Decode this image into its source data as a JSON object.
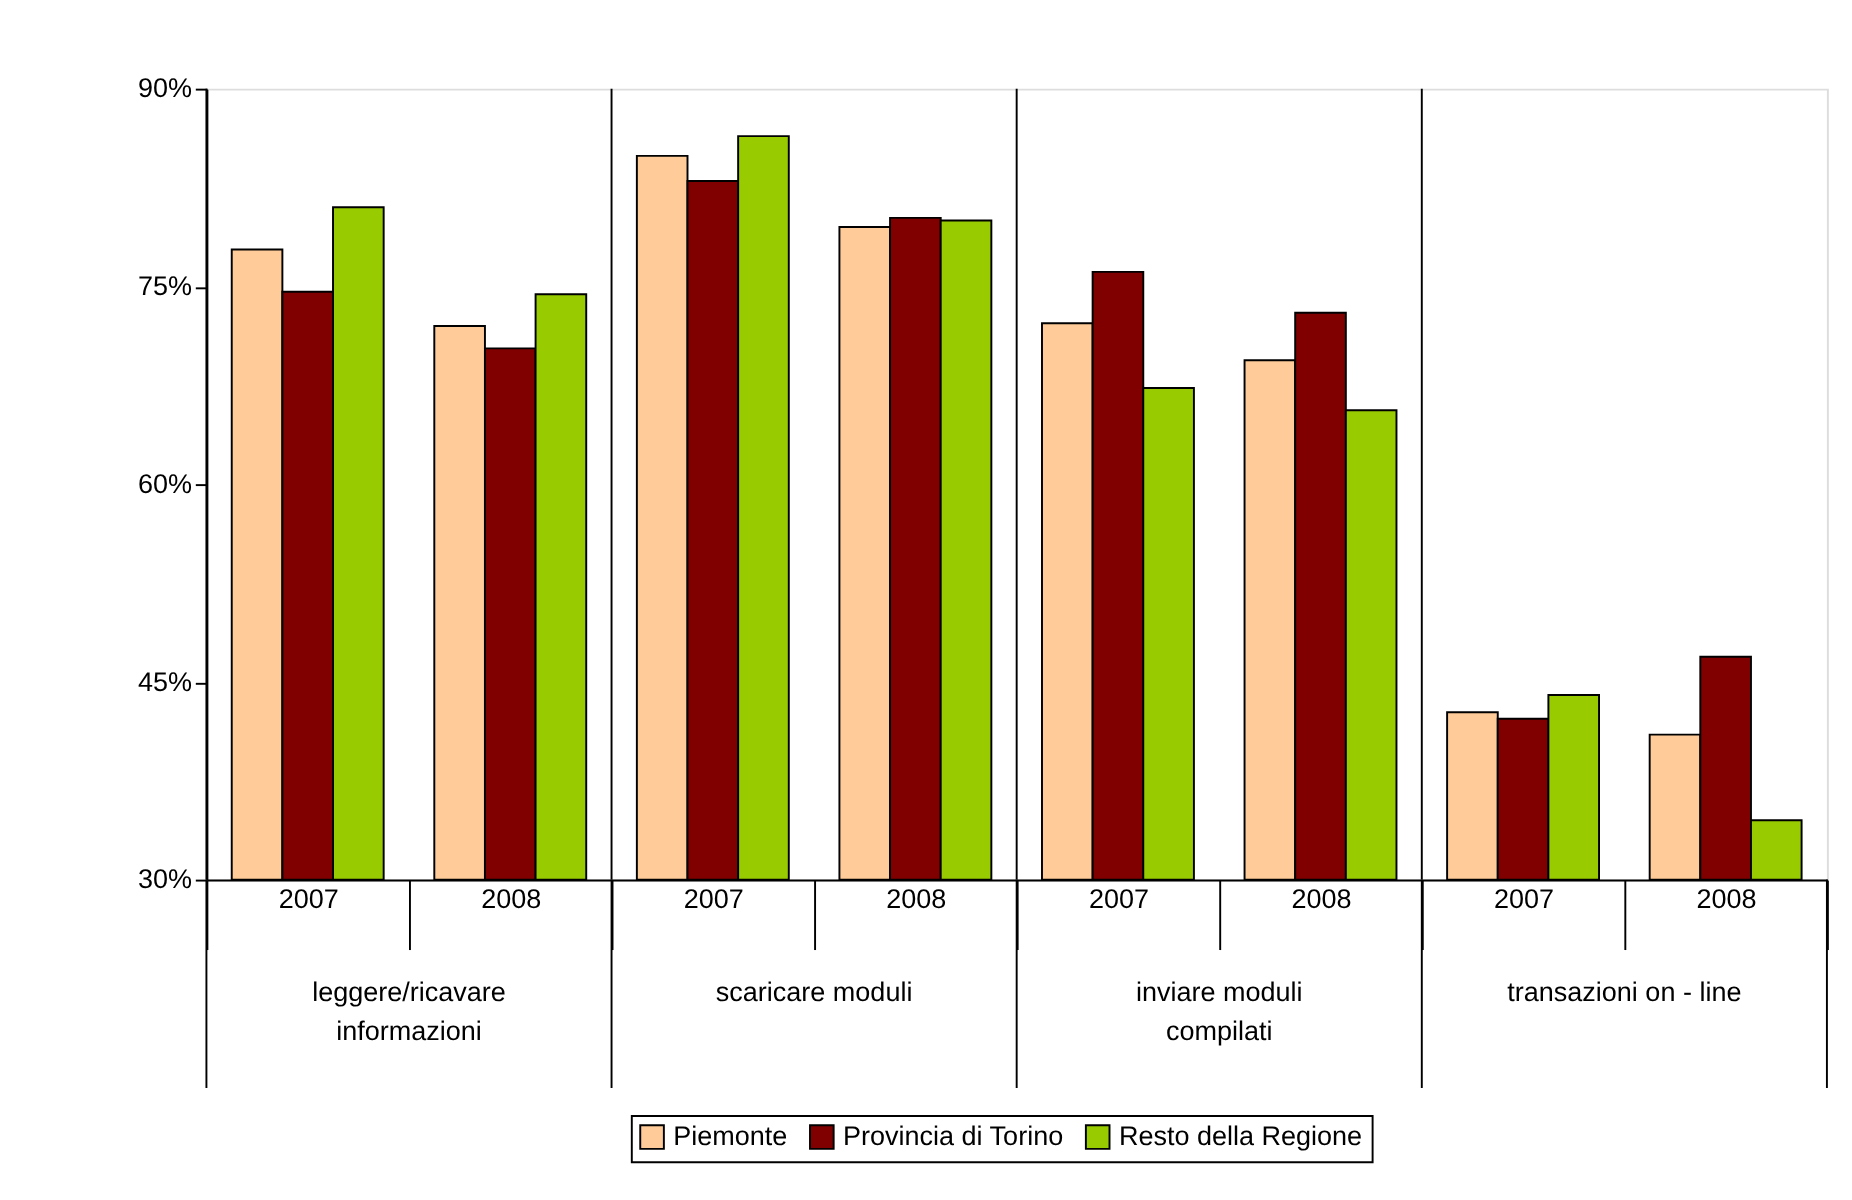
{
  "chart_data": {
    "type": "bar",
    "categories": [
      "2007",
      "2008",
      "2007",
      "2008",
      "2007",
      "2008",
      "2007",
      "2008"
    ],
    "annotations": [
      "leggere/ricavare\ninformazioni",
      "scaricare moduli",
      "inviare moduli\ncompilati",
      "transazioni on - line"
    ],
    "series": [
      {
        "name": "Piemonte",
        "color": "#ffcc99",
        "values": [
          77.8,
          72.0,
          84.9,
          79.5,
          72.2,
          69.4,
          42.7,
          41.0
        ]
      },
      {
        "name": "Provincia di Torino",
        "color": "#800000",
        "values": [
          74.6,
          70.3,
          83.0,
          80.2,
          76.1,
          73.0,
          42.2,
          46.9
        ]
      },
      {
        "name": "Resto della Regione",
        "color": "#99cc00",
        "values": [
          81.0,
          74.4,
          86.4,
          80.0,
          67.3,
          65.6,
          44.0,
          34.5
        ]
      }
    ],
    "ylim": [
      30,
      90
    ],
    "yticks": [
      {
        "value": 30,
        "label": "30%"
      },
      {
        "value": 45,
        "label": "45%"
      },
      {
        "value": 60,
        "label": "60%"
      },
      {
        "value": 75,
        "label": "75%"
      },
      {
        "value": 90,
        "label": "90%"
      }
    ],
    "grid": false,
    "legend": "bottom"
  }
}
